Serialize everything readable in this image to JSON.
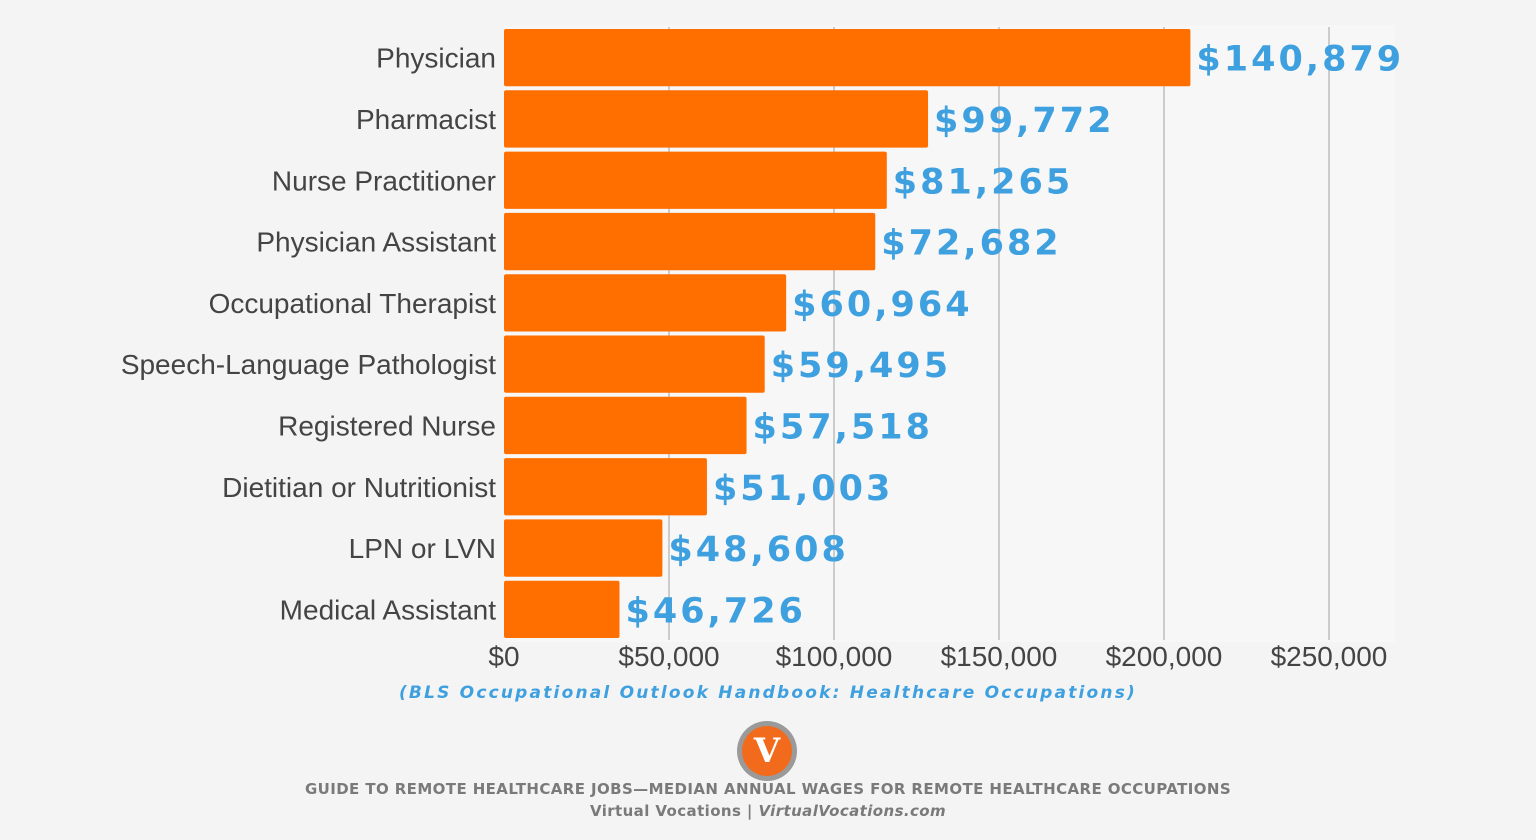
{
  "chart_data": {
    "type": "bar",
    "orientation": "horizontal",
    "categories": [
      "Physician",
      "Pharmacist",
      "Nurse Practitioner",
      "Physician Assistant",
      "Occupational Therapist",
      "Speech-Language Pathologist",
      "Registered Nurse",
      "Dietitian or Nutritionist",
      "LPN or LVN",
      "Medical Assistant"
    ],
    "values": [
      140879,
      99772,
      81265,
      72682,
      60964,
      59495,
      57518,
      51003,
      48608,
      46726
    ],
    "value_labels": [
      "$140,879",
      "$99,772",
      "$81,265",
      "$72,682",
      "$60,964",
      "$59,495",
      "$57,518",
      "$51,003",
      "$48,608",
      "$46,726"
    ],
    "bar_extent_values": [
      208000,
      128500,
      116000,
      112500,
      85500,
      79000,
      73500,
      61500,
      48000,
      35000
    ],
    "xlim": [
      0,
      270000
    ],
    "x_ticks": [
      0,
      50000,
      100000,
      150000,
      200000,
      250000
    ],
    "x_tick_labels": [
      "$0",
      "$50,000",
      "$100,000",
      "$150,000",
      "$200,000",
      "$250,000"
    ],
    "grid": true,
    "colors": {
      "bar": "#ff6f00",
      "value_label": "#3fa0e0",
      "grid": "#cccccc",
      "category_label": "#444444"
    }
  },
  "source_note": "(BLS Occupational Outlook Handbook: Healthcare Occupations)",
  "logo": {
    "letter": "V",
    "icon": "virtual-vocations-logo-icon",
    "color": "#f26b1d"
  },
  "footer": {
    "title": "GUIDE TO REMOTE HEALTHCARE JOBS—MEDIAN ANNUAL WAGES FOR REMOTE HEALTHCARE OCCUPATIONS",
    "credit_name": "Virtual Vocations | ",
    "credit_site": "VirtualVocations.com"
  }
}
